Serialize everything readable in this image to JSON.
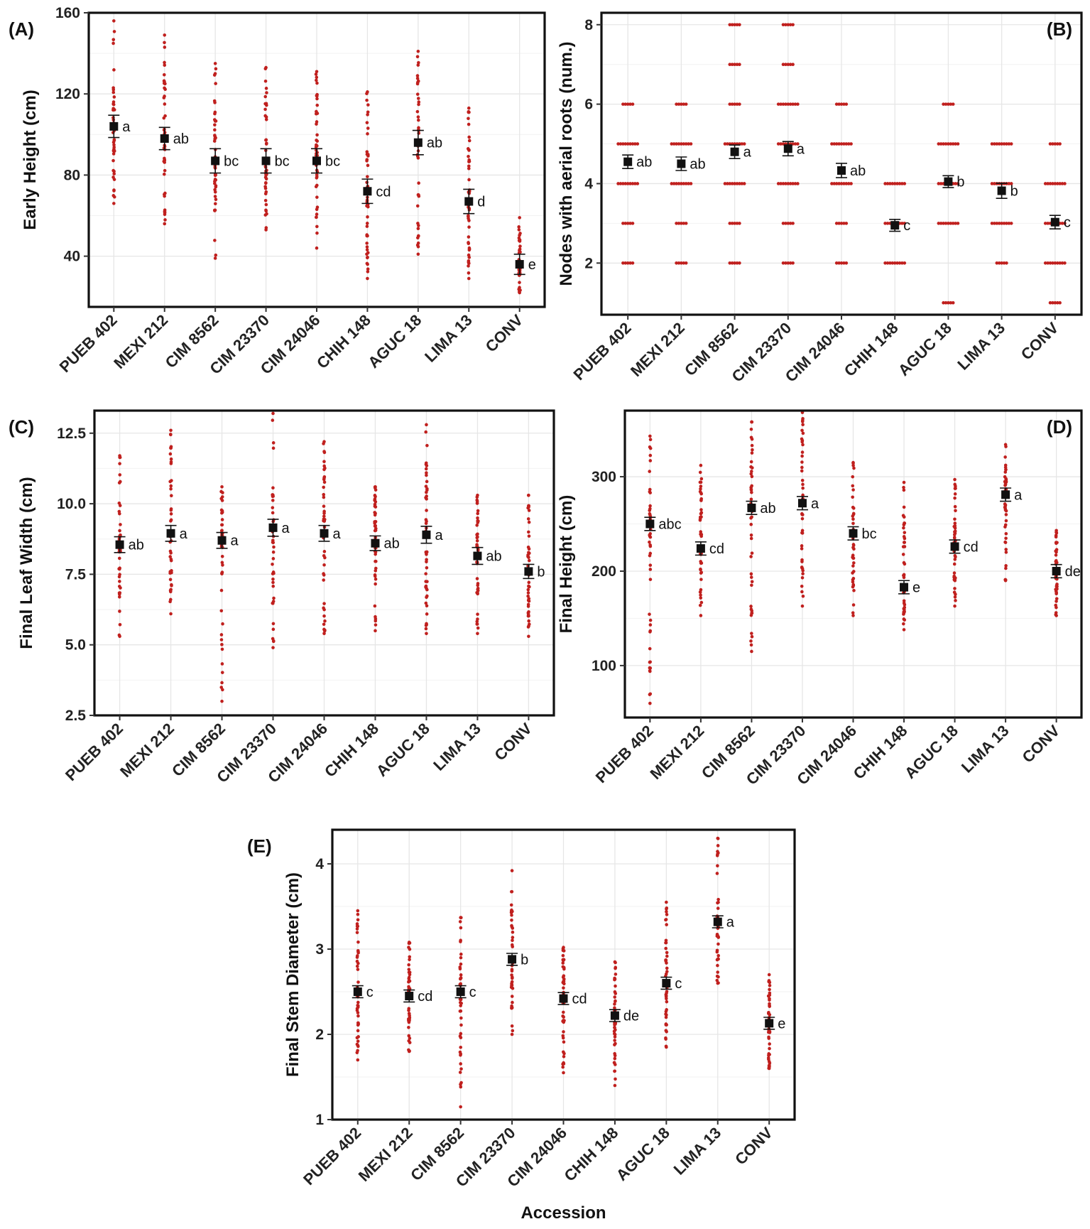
{
  "figure": {
    "accessions": [
      "PUEB 402",
      "MEXI 212",
      "CIM 8562",
      "CIM 23370",
      "CIM 24046",
      "CHIH 148",
      "AGUC 18",
      "LIMA 13",
      "CONV"
    ],
    "point_color": "#c0201e",
    "mean_color": "#111111"
  },
  "chart_data": [
    {
      "panel": "(A)",
      "type": "scatter",
      "title": "",
      "xlabel": "",
      "ylabel": "Early Height (cm)",
      "ylim": [
        15,
        160
      ],
      "yticks": [
        40,
        80,
        120,
        160
      ],
      "ytick_labels": [
        "40",
        "80",
        "120",
        "160"
      ],
      "categories": [
        "PUEB 402",
        "MEXI 212",
        "CIM 8562",
        "CIM 23370",
        "CIM 24046",
        "CHIH 148",
        "AGUC 18",
        "LIMA 13",
        "CONV"
      ],
      "means": [
        104,
        98,
        87,
        87,
        87,
        72,
        96,
        67,
        36
      ],
      "se": [
        5.5,
        5.5,
        6,
        6,
        6,
        6,
        6,
        6,
        5
      ],
      "letters": [
        "a",
        "ab",
        "bc",
        "bc",
        "bc",
        "cd",
        "ab",
        "d",
        "e"
      ],
      "ranges": [
        [
          66,
          156
        ],
        [
          56,
          149
        ],
        [
          39,
          135
        ],
        [
          53,
          133
        ],
        [
          44,
          131
        ],
        [
          29,
          121
        ],
        [
          41,
          141
        ],
        [
          29,
          113
        ],
        [
          22,
          59
        ]
      ]
    },
    {
      "panel": "(B)",
      "type": "scatter",
      "title": "",
      "xlabel": "",
      "ylabel": "Nodes with aerial roots (num.)",
      "ylim": [
        0.7,
        8.3
      ],
      "yticks": [
        2,
        4,
        6,
        8
      ],
      "ytick_labels": [
        "2",
        "4",
        "6",
        "8"
      ],
      "categories": [
        "PUEB 402",
        "MEXI 212",
        "CIM 8562",
        "CIM 23370",
        "CIM 24046",
        "CHIH 148",
        "AGUC 18",
        "LIMA 13",
        "CONV"
      ],
      "means": [
        4.55,
        4.5,
        4.8,
        4.88,
        4.33,
        2.95,
        4.05,
        3.82,
        3.03
      ],
      "se": [
        0.17,
        0.17,
        0.17,
        0.18,
        0.18,
        0.15,
        0.15,
        0.19,
        0.17
      ],
      "letters": [
        "ab",
        "ab",
        "a",
        "a",
        "ab",
        "c",
        "b",
        "b",
        "c"
      ],
      "discrete_levels": [
        [
          2,
          3,
          4,
          5,
          6
        ],
        [
          2,
          3,
          4,
          5,
          6
        ],
        [
          2,
          3,
          4,
          5,
          6,
          7,
          8
        ],
        [
          2,
          3,
          4,
          5,
          6,
          7,
          8
        ],
        [
          2,
          3,
          4,
          5,
          6
        ],
        [
          2,
          3,
          4
        ],
        [
          1,
          3,
          4,
          5,
          6
        ],
        [
          2,
          3,
          4,
          5
        ],
        [
          1,
          2,
          3,
          4,
          5
        ]
      ]
    },
    {
      "panel": "(C)",
      "type": "scatter",
      "title": "",
      "xlabel": "",
      "ylabel": "Final Leaf Width (cm)",
      "ylim": [
        2.5,
        13.3
      ],
      "yticks": [
        2.5,
        5.0,
        7.5,
        10.0,
        12.5
      ],
      "ytick_labels": [
        "2.5",
        "5.0",
        "7.5",
        "10.0",
        "12.5"
      ],
      "categories": [
        "PUEB 402",
        "MEXI 212",
        "CIM 8562",
        "CIM 23370",
        "CIM 24046",
        "CHIH 148",
        "AGUC 18",
        "LIMA 13",
        "CONV"
      ],
      "means": [
        8.55,
        8.95,
        8.7,
        9.15,
        8.95,
        8.6,
        8.9,
        8.15,
        7.6
      ],
      "se": [
        0.28,
        0.28,
        0.28,
        0.3,
        0.28,
        0.26,
        0.3,
        0.3,
        0.25
      ],
      "letters": [
        "ab",
        "a",
        "a",
        "a",
        "a",
        "ab",
        "a",
        "ab",
        "b"
      ],
      "ranges": [
        [
          5.3,
          11.7
        ],
        [
          6.1,
          12.6
        ],
        [
          3.0,
          10.6
        ],
        [
          4.9,
          13.2
        ],
        [
          5.4,
          12.2
        ],
        [
          5.5,
          10.6
        ],
        [
          5.4,
          12.8
        ],
        [
          5.4,
          10.3
        ],
        [
          5.3,
          10.3
        ]
      ]
    },
    {
      "panel": "(D)",
      "type": "scatter",
      "title": "",
      "xlabel": "",
      "ylabel": "Final Height (cm)",
      "ylim": [
        45,
        370
      ],
      "yticks": [
        100,
        200,
        300
      ],
      "ytick_labels": [
        "100",
        "200",
        "300"
      ],
      "categories": [
        "PUEB 402",
        "MEXI 212",
        "CIM 8562",
        "CIM 23370",
        "CIM 24046",
        "CHIH 148",
        "AGUC 18",
        "LIMA 13",
        "CONV"
      ],
      "means": [
        250,
        224,
        267,
        272,
        240,
        183,
        226,
        281,
        200
      ],
      "se": [
        7,
        7,
        7,
        7,
        7,
        7,
        7,
        7,
        7
      ],
      "letters": [
        "abc",
        "cd",
        "ab",
        "a",
        "bc",
        "e",
        "cd",
        "a",
        "de"
      ],
      "ranges": [
        [
          60,
          343
        ],
        [
          153,
          312
        ],
        [
          115,
          358
        ],
        [
          163,
          368
        ],
        [
          153,
          315
        ],
        [
          138,
          294
        ],
        [
          163,
          297
        ],
        [
          190,
          334
        ],
        [
          153,
          243
        ]
      ]
    },
    {
      "panel": "(E)",
      "type": "scatter",
      "title": "",
      "xlabel": "Accession",
      "ylabel": "Final Stem Diameter (cm)",
      "ylim": [
        1,
        4.4
      ],
      "yticks": [
        1,
        2,
        3,
        4
      ],
      "ytick_labels": [
        "1",
        "2",
        "3",
        "4"
      ],
      "categories": [
        "PUEB 402",
        "MEXI 212",
        "CIM 8562",
        "CIM 23370",
        "CIM 24046",
        "CHIH 148",
        "AGUC 18",
        "LIMA 13",
        "CONV"
      ],
      "means": [
        2.5,
        2.45,
        2.5,
        2.88,
        2.42,
        2.22,
        2.6,
        3.32,
        2.13
      ],
      "se": [
        0.07,
        0.07,
        0.07,
        0.07,
        0.07,
        0.07,
        0.07,
        0.07,
        0.07
      ],
      "letters": [
        "c",
        "cd",
        "c",
        "b",
        "cd",
        "de",
        "c",
        "a",
        "e"
      ],
      "ranges": [
        [
          1.7,
          3.45
        ],
        [
          1.8,
          3.08
        ],
        [
          1.15,
          3.37
        ],
        [
          2.0,
          3.92
        ],
        [
          1.55,
          3.02
        ],
        [
          1.4,
          2.85
        ],
        [
          1.85,
          3.55
        ],
        [
          2.6,
          4.3
        ],
        [
          1.6,
          2.7
        ]
      ]
    }
  ]
}
